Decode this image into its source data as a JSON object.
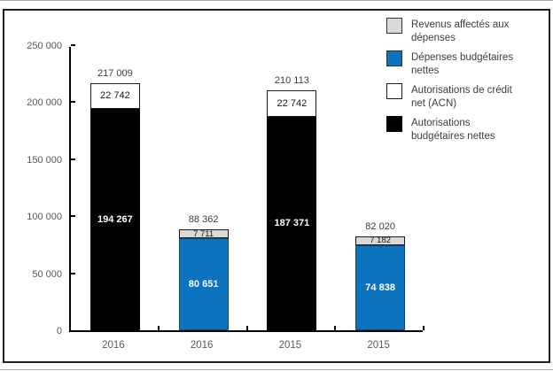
{
  "chart_data": {
    "type": "bar",
    "subtype": "stacked",
    "title": "",
    "xlabel": "",
    "ylabel": "",
    "categories": [
      "2016",
      "2016",
      "2015",
      "2015"
    ],
    "ylim": [
      0,
      250000
    ],
    "ytick_values": [
      0,
      50000,
      100000,
      150000,
      200000,
      250000
    ],
    "ytick_labels": [
      "0",
      "50 000",
      "100 000",
      "150 000",
      "200 000",
      "250 000"
    ],
    "grid": "off",
    "bars": [
      {
        "category": "2016",
        "total": 217009,
        "total_label": "217 009",
        "segments": [
          {
            "series": "Autorisations budgétaires nettes",
            "value": 194267,
            "label": "194 267",
            "style": "black"
          },
          {
            "series": "Autorisations de crédit net (ACN)",
            "value": 22742,
            "label": "22 742",
            "style": "white"
          }
        ]
      },
      {
        "category": "2016",
        "total": 88362,
        "total_label": "88 362",
        "segments": [
          {
            "series": "Dépenses budgétaires nettes",
            "value": 80651,
            "label": "80 651",
            "style": "blue"
          },
          {
            "series": "Revenus affectés aux dépenses",
            "value": 7711,
            "label": "7 711",
            "style": "gray"
          }
        ]
      },
      {
        "category": "2015",
        "total": 210113,
        "total_label": "210 113",
        "segments": [
          {
            "series": "Autorisations budgétaires nettes",
            "value": 187371,
            "label": "187 371",
            "style": "black"
          },
          {
            "series": "Autorisations de crédit net (ACN)",
            "value": 22742,
            "label": "22 742",
            "style": "white"
          }
        ]
      },
      {
        "category": "2015",
        "total": 82020,
        "total_label": "82 020",
        "segments": [
          {
            "series": "Dépenses budgétaires nettes",
            "value": 74838,
            "label": "74 838",
            "style": "blue"
          },
          {
            "series": "Revenus affectés aux dépenses",
            "value": 7182,
            "label": "7 182",
            "style": "gray"
          }
        ]
      }
    ],
    "legend": {
      "position": "top-right",
      "items": [
        {
          "lines": [
            "Revenus affectés aux",
            "dépenses"
          ],
          "style": "gray"
        },
        {
          "lines": [
            "Dépenses budgétaires",
            "nettes"
          ],
          "style": "blue"
        },
        {
          "lines": [
            "Autorisations de crédit",
            "net (ACN)"
          ],
          "style": "white"
        },
        {
          "lines": [
            "Autorisations",
            "budgétaires nettes"
          ],
          "style": "black"
        }
      ]
    },
    "colors": {
      "blue": "#0E73BE",
      "gray": "#D9D9D9",
      "white": "#FFFFFF",
      "black": "#000000"
    }
  }
}
